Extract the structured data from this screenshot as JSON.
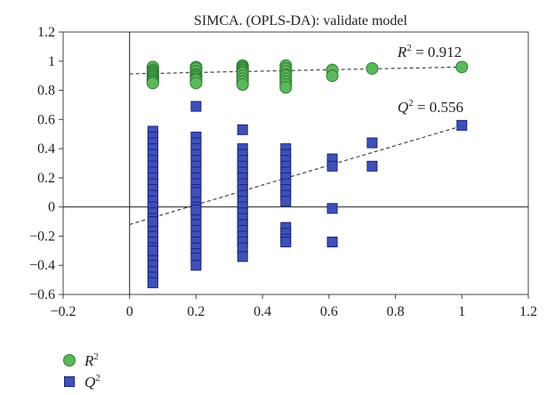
{
  "chart_data": {
    "type": "scatter",
    "title": "SIMCA. (OPLS-DA): validate model",
    "xlabel": "",
    "ylabel": "",
    "xlim": [
      -0.2,
      1.2
    ],
    "ylim": [
      -0.6,
      1.2
    ],
    "x_ticks": [
      "−0.2",
      "0",
      "0.2",
      "0.4",
      "0.6",
      "0.8",
      "1",
      "1.2"
    ],
    "y_ticks": [
      "−0.6",
      "−0.4",
      "−0.2",
      "0",
      "0.2",
      "0.4",
      "0.6",
      "0.8",
      "1",
      "1.2"
    ],
    "grid": false,
    "legend_position": "bottom-left",
    "series": [
      {
        "name": "R2",
        "marker": "circle",
        "color": "#5cb85c",
        "stroke": "#2e7d32",
        "x": [
          0.07,
          0.07,
          0.07,
          0.07,
          0.07,
          0.07,
          0.07,
          0.07,
          0.07,
          0.07,
          0.07,
          0.2,
          0.2,
          0.2,
          0.2,
          0.2,
          0.2,
          0.2,
          0.2,
          0.2,
          0.34,
          0.34,
          0.34,
          0.34,
          0.34,
          0.34,
          0.34,
          0.34,
          0.34,
          0.34,
          0.47,
          0.47,
          0.47,
          0.47,
          0.47,
          0.47,
          0.47,
          0.47,
          0.47,
          0.61,
          0.61,
          0.73,
          1.0
        ],
        "y": [
          0.96,
          0.94,
          0.93,
          0.92,
          0.91,
          0.9,
          0.89,
          0.88,
          0.87,
          0.86,
          0.85,
          0.96,
          0.95,
          0.93,
          0.91,
          0.9,
          0.89,
          0.88,
          0.87,
          0.85,
          0.97,
          0.96,
          0.95,
          0.94,
          0.93,
          0.92,
          0.9,
          0.88,
          0.86,
          0.84,
          0.97,
          0.95,
          0.93,
          0.91,
          0.9,
          0.88,
          0.86,
          0.84,
          0.82,
          0.94,
          0.9,
          0.95,
          0.96
        ]
      },
      {
        "name": "Q2",
        "marker": "square",
        "color": "#3f51b5",
        "stroke": "#1a237e",
        "x": [
          0.07,
          0.07,
          0.07,
          0.07,
          0.07,
          0.07,
          0.07,
          0.07,
          0.07,
          0.07,
          0.07,
          0.07,
          0.07,
          0.07,
          0.07,
          0.07,
          0.07,
          0.07,
          0.07,
          0.07,
          0.07,
          0.07,
          0.07,
          0.07,
          0.07,
          0.07,
          0.07,
          0.07,
          0.07,
          0.2,
          0.2,
          0.2,
          0.2,
          0.2,
          0.2,
          0.2,
          0.2,
          0.2,
          0.2,
          0.2,
          0.2,
          0.2,
          0.2,
          0.2,
          0.2,
          0.2,
          0.2,
          0.2,
          0.2,
          0.2,
          0.2,
          0.2,
          0.2,
          0.2,
          0.2,
          0.34,
          0.34,
          0.34,
          0.34,
          0.34,
          0.34,
          0.34,
          0.34,
          0.34,
          0.34,
          0.34,
          0.34,
          0.34,
          0.34,
          0.34,
          0.34,
          0.34,
          0.34,
          0.34,
          0.34,
          0.47,
          0.47,
          0.47,
          0.47,
          0.47,
          0.47,
          0.47,
          0.47,
          0.47,
          0.47,
          0.47,
          0.47,
          0.47,
          0.47,
          0.61,
          0.61,
          0.61,
          0.61,
          0.73,
          0.73,
          1.0
        ],
        "y": [
          0.52,
          0.48,
          0.44,
          0.4,
          0.36,
          0.32,
          0.28,
          0.24,
          0.2,
          0.16,
          0.12,
          0.08,
          0.04,
          0.0,
          -0.04,
          -0.08,
          -0.12,
          -0.16,
          -0.2,
          -0.24,
          -0.28,
          -0.32,
          -0.36,
          -0.4,
          -0.44,
          -0.48,
          -0.52,
          -0.3,
          -0.1,
          0.69,
          0.48,
          0.44,
          0.4,
          0.36,
          0.32,
          0.28,
          0.24,
          0.2,
          0.16,
          0.12,
          0.08,
          0.04,
          0.0,
          -0.04,
          -0.08,
          -0.12,
          -0.16,
          -0.2,
          -0.24,
          -0.28,
          -0.32,
          -0.35,
          -0.4,
          0.1,
          -0.02,
          0.53,
          0.4,
          0.36,
          0.32,
          0.28,
          0.24,
          0.2,
          0.16,
          0.12,
          0.08,
          0.04,
          0.0,
          -0.04,
          -0.08,
          -0.12,
          -0.16,
          -0.2,
          -0.24,
          -0.28,
          -0.34,
          0.4,
          0.36,
          0.32,
          0.28,
          0.24,
          0.2,
          0.16,
          0.12,
          0.08,
          0.04,
          -0.14,
          -0.18,
          -0.22,
          -0.24,
          0.33,
          0.28,
          -0.01,
          -0.24,
          0.44,
          0.28,
          0.56
        ]
      }
    ],
    "trendlines": [
      {
        "series": "R2",
        "x": [
          0,
          1
        ],
        "y": [
          0.913,
          0.96
        ]
      },
      {
        "series": "Q2",
        "x": [
          0,
          1
        ],
        "y": [
          -0.12,
          0.556
        ]
      }
    ],
    "annotations": [
      {
        "symbol": "R",
        "sup": "2",
        "rest": " = 0.912",
        "x": 0.9,
        "y": 1.0
      },
      {
        "symbol": "Q",
        "sup": "2",
        "rest": " = 0.556",
        "x": 0.9,
        "y": 0.62
      }
    ],
    "legend": [
      {
        "symbol": "R",
        "sup": "2",
        "marker": "circle"
      },
      {
        "symbol": "Q",
        "sup": "2",
        "marker": "square"
      }
    ]
  }
}
